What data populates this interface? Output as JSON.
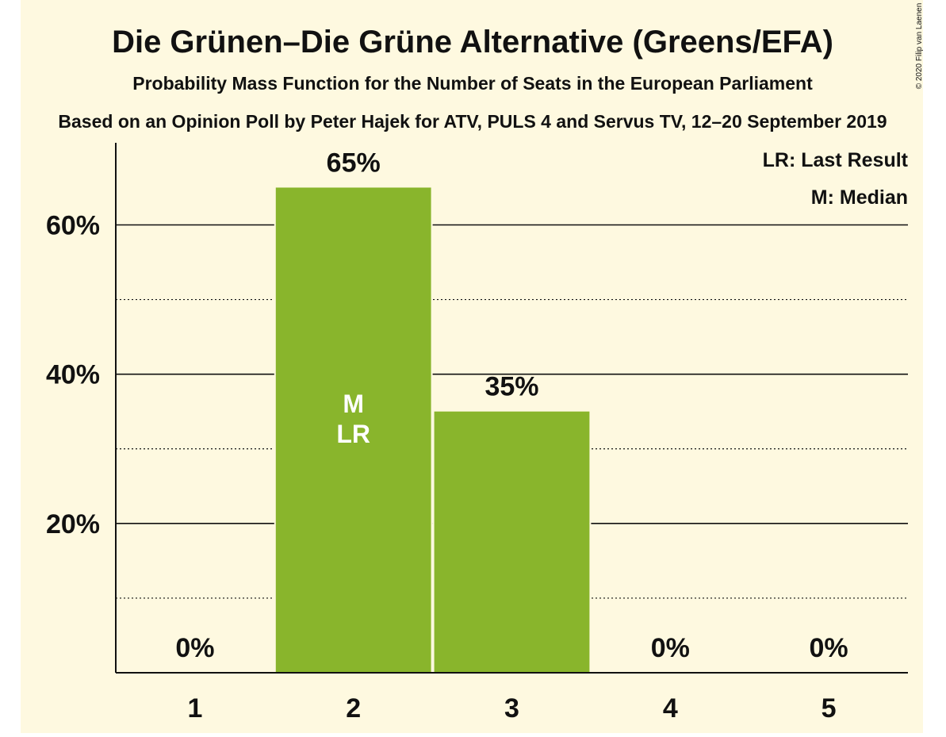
{
  "chart_data": {
    "type": "bar",
    "title": "Die Grünen–Die Grüne Alternative (Greens/EFA)",
    "subtitle": "Probability Mass Function for the Number of Seats in the European Parliament",
    "subtitle2": "Based on an Opinion Poll by Peter Hajek for ATV, PULS 4 and Servus TV, 12–20 September 2019",
    "copyright": "© 2020 Filip van Laenen",
    "categories": [
      "1",
      "2",
      "3",
      "4",
      "5"
    ],
    "values": [
      0,
      65,
      35,
      0,
      0
    ],
    "value_labels": [
      "0%",
      "65%",
      "35%",
      "0%",
      "0%"
    ],
    "y_ticks": [
      {
        "value": 20,
        "label": "20%"
      },
      {
        "value": 40,
        "label": "40%"
      },
      {
        "value": 60,
        "label": "60%"
      }
    ],
    "minor_gridlines": [
      10,
      30,
      50
    ],
    "ylim": [
      0,
      71
    ],
    "median_category": "2",
    "last_result_category": "2",
    "bar_markers": [
      "M",
      "LR"
    ],
    "legend": {
      "placement": "top-right",
      "items": [
        "LR: Last Result",
        "M: Median"
      ]
    },
    "colors": {
      "background": "#FEF9E0",
      "bar": "#89B52C",
      "text": "#111111",
      "marker_text": "#FFFFFF"
    }
  }
}
